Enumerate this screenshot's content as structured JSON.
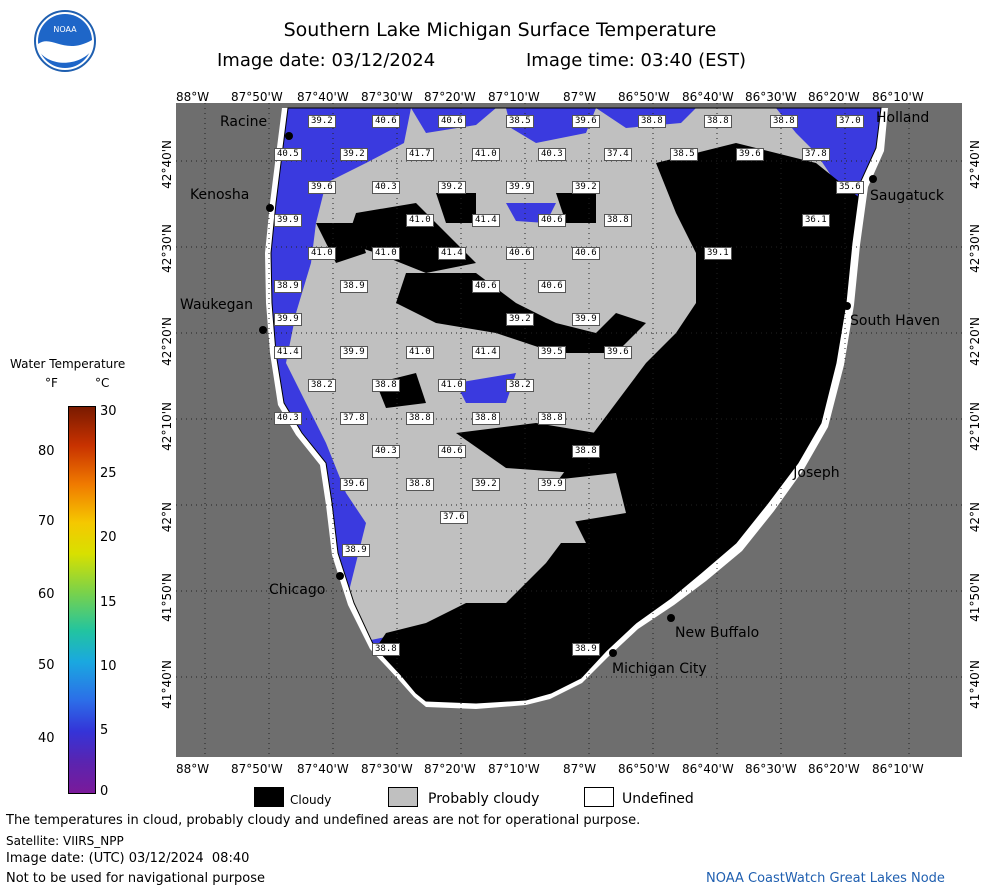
{
  "header": {
    "title": "Southern Lake Michigan Surface Temperature",
    "image_date_label": "Image date: 03/12/2024",
    "image_time_label": "Image time: 03:40 (EST)",
    "logo_text": "NOAA"
  },
  "axes": {
    "longitudes": [
      "88°W",
      "87°50'W",
      "87°40'W",
      "87°30'W",
      "87°20'W",
      "87°10'W",
      "87°W",
      "86°50'W",
      "86°40'W",
      "86°30'W",
      "86°20'W",
      "86°10'W"
    ],
    "latitudes": [
      "42°40'N",
      "42°30'N",
      "42°20'N",
      "42°10'N",
      "42°N",
      "41°50'N",
      "41°40'N"
    ]
  },
  "cities": [
    {
      "name": "Racine"
    },
    {
      "name": "Kenosha"
    },
    {
      "name": "Waukegan"
    },
    {
      "name": "Chicago"
    },
    {
      "name": "Holland"
    },
    {
      "name": "Saugatuck"
    },
    {
      "name": "South Haven"
    },
    {
      "name": "St. Joseph"
    },
    {
      "name": "New Buffalo"
    },
    {
      "name": "Michigan City"
    }
  ],
  "temperature_labels": [
    "39.2",
    "40.6",
    "40.6",
    "38.5",
    "39.6",
    "38.8",
    "38.8",
    "38.8",
    "37.0",
    "40.5",
    "39.2",
    "41.7",
    "41.0",
    "40.3",
    "37.4",
    "38.5",
    "39.6",
    "37.8",
    "39.6",
    "40.3",
    "39.2",
    "39.9",
    "39.2",
    "35.6",
    "39.9",
    "41.0",
    "41.4",
    "40.6",
    "38.8",
    "36.1",
    "41.0",
    "41.0",
    "41.4",
    "40.6",
    "40.6",
    "39.1",
    "38.9",
    "38.9",
    "40.6",
    "40.6",
    "39.9",
    "39.2",
    "39.9",
    "41.4",
    "39.9",
    "41.0",
    "41.4",
    "39.5",
    "39.6",
    "38.2",
    "38.8",
    "41.0",
    "38.2",
    "40.3",
    "37.8",
    "38.8",
    "38.8",
    "38.8",
    "40.3",
    "40.6",
    "38.8",
    "39.6",
    "38.8",
    "39.2",
    "39.9",
    "37.6",
    "38.9",
    "38.8",
    "38.9"
  ],
  "colorbar": {
    "title": "Water Temperature",
    "unit_f": "°F",
    "unit_c": "°C",
    "f_ticks": [
      "80",
      "70",
      "60",
      "50",
      "40"
    ],
    "c_ticks": [
      "30",
      "25",
      "20",
      "15",
      "10",
      "5",
      "0"
    ]
  },
  "legend": {
    "cloudy": "Cloudy",
    "probably_cloudy": "Probably cloudy",
    "undefined": "Undefined"
  },
  "colors": {
    "land": "#6e6e6e",
    "water_blue": "#3a3adf",
    "cloud": "#000000",
    "probably_cloudy": "#c0c0c0"
  },
  "footer": {
    "disclaimer": "The temperatures in cloud, probably cloudy and undefined areas are not for operational purpose.",
    "satellite": "Satellite: VIIRS_NPP",
    "utc_date": "Image date: (UTC) 03/12/2024  08:40",
    "nav_warning": "Not to be used for navigational purpose",
    "credit": "NOAA CoastWatch Great Lakes Node"
  }
}
